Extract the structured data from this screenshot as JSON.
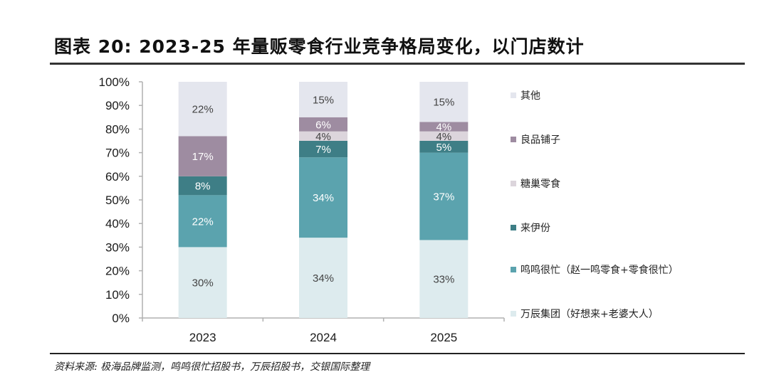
{
  "header": {
    "title": "图表 20: 2023-25 年量贩零食行业竞争格局变化，以门店数计"
  },
  "footer": {
    "source": "资料来源: 极海品牌监测，鸣鸣很忙招股书，万辰招股书，交银国际整理"
  },
  "chart_data": {
    "type": "bar",
    "stacked": true,
    "percent": true,
    "title": "2023-25 年量贩零食行业竞争格局变化，以门店数计",
    "xlabel": "",
    "ylabel": "",
    "ylim": [
      0,
      100
    ],
    "yticks": [
      "0%",
      "10%",
      "20%",
      "30%",
      "40%",
      "50%",
      "60%",
      "70%",
      "80%",
      "90%",
      "100%"
    ],
    "categories": [
      "2023",
      "2024",
      "2025"
    ],
    "legend_position": "right",
    "grid": false,
    "series": [
      {
        "name": "万辰集团（好想来+老婆大人）",
        "color": "#DDEBEE",
        "label_color": "#444444",
        "values": [
          30,
          34,
          33
        ]
      },
      {
        "name": "鸣鸣很忙（赵一鸣零食+零食很忙）",
        "color": "#5BA3AE",
        "label_color": "#ffffff",
        "values": [
          22,
          34,
          37
        ]
      },
      {
        "name": "来伊份",
        "color": "#3E7E86",
        "label_color": "#ffffff",
        "values": [
          8,
          7,
          5
        ]
      },
      {
        "name": "糖巢零食",
        "color": "#DCD5DC",
        "label_color": "#444444",
        "values": [
          0,
          4,
          4
        ]
      },
      {
        "name": "良品铺子",
        "color": "#9E8CA1",
        "label_color": "#ffffff",
        "values": [
          17,
          6,
          4
        ]
      },
      {
        "name": "其他",
        "color": "#E4E6EE",
        "label_color": "#444444",
        "values": [
          22,
          15,
          15
        ]
      }
    ],
    "legend_order": [
      "其他",
      "良品铺子",
      "糖巢零食",
      "来伊份",
      "鸣鸣很忙（赵一鸣零食+零食很忙）",
      "万辰集团（好想来+老婆大人）"
    ]
  }
}
